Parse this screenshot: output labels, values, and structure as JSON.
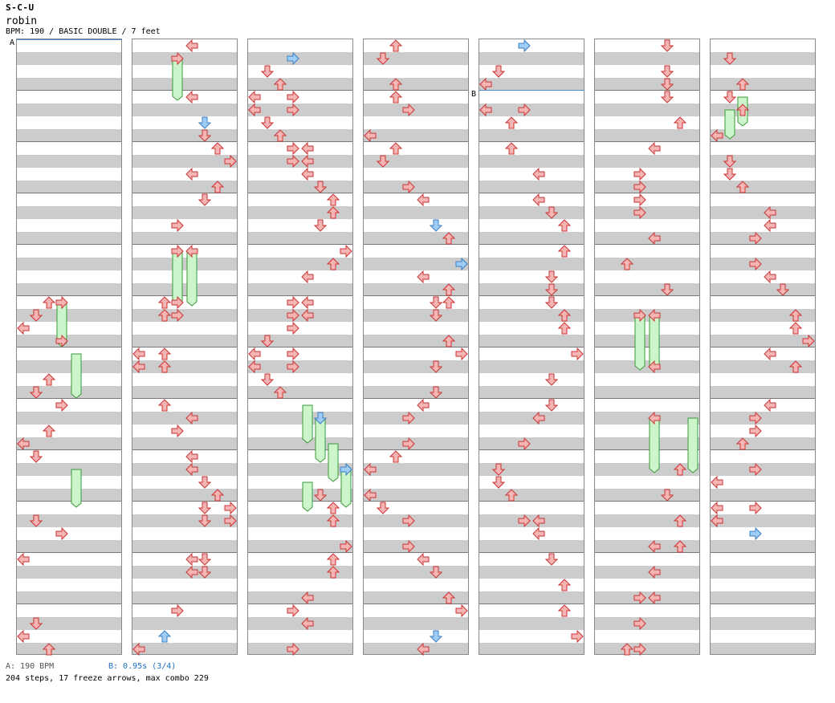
{
  "header": {
    "title": "S-C-U",
    "artist": "robin",
    "info": "BPM: 190 / BASIC DOUBLE / 7 feet"
  },
  "markers": {
    "a": "A",
    "b": "B"
  },
  "footer": {
    "bpm_a": "A: 190 BPM",
    "bpm_b": "B: 0.95s (3/4)",
    "stats": "204 steps, 17 freeze arrows, max combo 229"
  },
  "colors": {
    "arrow_red_fill": "#f5b5b5",
    "arrow_red_stroke": "#cc3333",
    "arrow_blue_fill": "#9fcdf5",
    "arrow_blue_stroke": "#3b7fc4",
    "freeze_fill": "#ccf5cc",
    "freeze_stroke": "#3a9a3a",
    "stripe_gray": "#cccccc",
    "border_gray": "#888888",
    "bpm_change_line": "#4a8fd6"
  },
  "icons": {
    "left": "left-arrow-icon",
    "down": "down-arrow-icon",
    "up": "up-arrow-icon",
    "right": "right-arrow-icon"
  }
}
